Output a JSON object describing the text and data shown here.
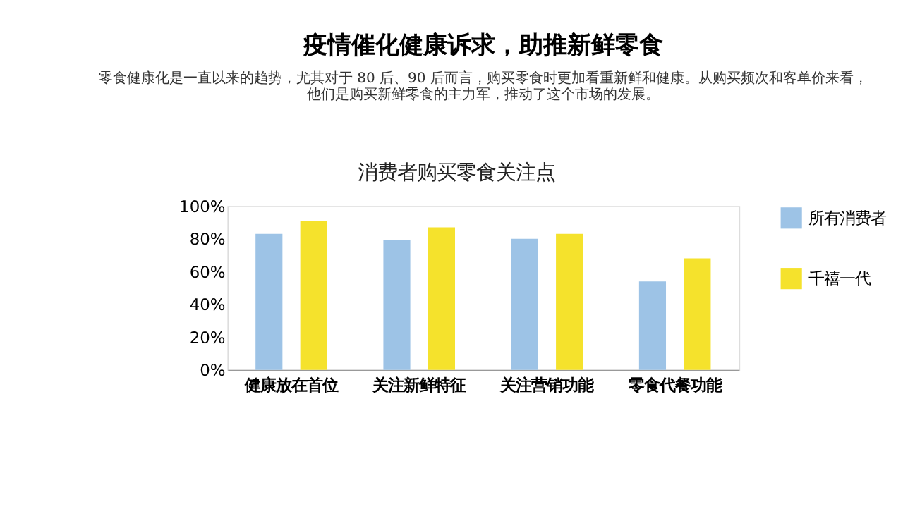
{
  "chart_data": {
    "type": "bar",
    "title": "疫情催化健康诉求，助推新鲜零食",
    "subtitle": "零食健康化是一直以来的趋势，尤其对于 80 后、90 后而言，购买零食时更加看重新鲜和健康。从购买频次和客单价来看，他们是购买新鲜零食的主力军，推动了这个市场的发展。",
    "annotations": [
      "消费者购买零食关注点"
    ],
    "categories": [
      "健康放在首位",
      "关注新鲜特征",
      "关注营销功能",
      "零食代餐功能"
    ],
    "series": [
      {
        "name": "所有消费者",
        "color": "#9dc3e6",
        "values": [
          83,
          79,
          80,
          54
        ]
      },
      {
        "name": "千禧一代",
        "color": "#f5e22c",
        "values": [
          91,
          87,
          83,
          68
        ]
      }
    ],
    "ylim": [
      0,
      100
    ],
    "yticks": [
      {
        "value": 0,
        "label": "0%"
      },
      {
        "value": 20,
        "label": "20%"
      },
      {
        "value": 40,
        "label": "40%"
      },
      {
        "value": 60,
        "label": "60%"
      },
      {
        "value": 80,
        "label": "80%"
      },
      {
        "value": 100,
        "label": "100%"
      }
    ],
    "grid": false,
    "legend": "right"
  }
}
